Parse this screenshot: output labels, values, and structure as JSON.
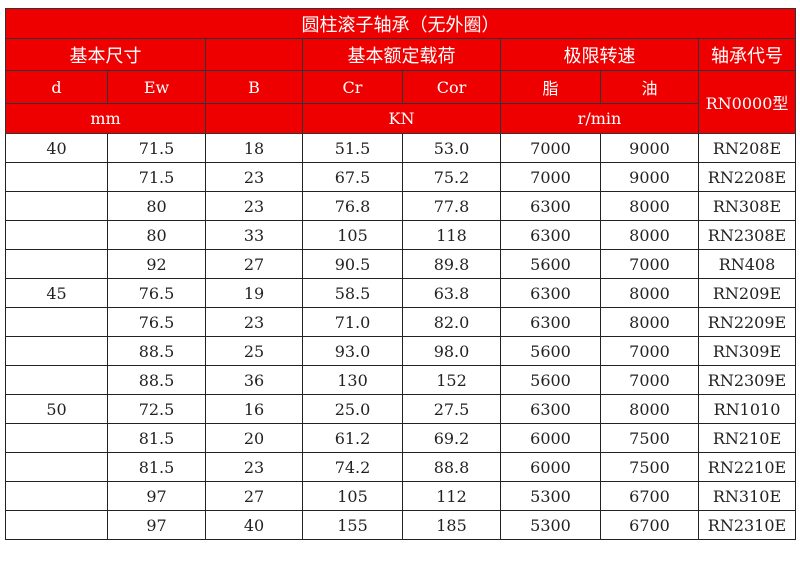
{
  "title": "圆柱滚子轴承（无外圈）",
  "header": {
    "group_dims": "基本尺寸",
    "group_load": "基本额定载荷",
    "group_speed": "极限转速",
    "group_code": "轴承代号",
    "col_d": "d",
    "col_ew": "Ew",
    "col_b": "B",
    "col_cr": "Cr",
    "col_cor": "Cor",
    "col_grease": "脂",
    "col_oil": "油",
    "code_type": "RN0000型",
    "unit_mm": "mm",
    "unit_kn": "KN",
    "unit_rpm": "r/min"
  },
  "header_color": "#ee0000",
  "rows": [
    [
      "40",
      "71.5",
      "18",
      "51.5",
      "53.0",
      "7000",
      "9000",
      "RN208E"
    ],
    [
      "",
      "71.5",
      "23",
      "67.5",
      "75.2",
      "7000",
      "9000",
      "RN2208E"
    ],
    [
      "",
      "80",
      "23",
      "76.8",
      "77.8",
      "6300",
      "8000",
      "RN308E"
    ],
    [
      "",
      "80",
      "33",
      "105",
      "118",
      "6300",
      "8000",
      "RN2308E"
    ],
    [
      "",
      "92",
      "27",
      "90.5",
      "89.8",
      "5600",
      "7000",
      "RN408"
    ],
    [
      "45",
      "76.5",
      "19",
      "58.5",
      "63.8",
      "6300",
      "8000",
      "RN209E"
    ],
    [
      "",
      "76.5",
      "23",
      "71.0",
      "82.0",
      "6300",
      "8000",
      "RN2209E"
    ],
    [
      "",
      "88.5",
      "25",
      "93.0",
      "98.0",
      "5600",
      "7000",
      "RN309E"
    ],
    [
      "",
      "88.5",
      "36",
      "130",
      "152",
      "5600",
      "7000",
      "RN2309E"
    ],
    [
      "50",
      "72.5",
      "16",
      "25.0",
      "27.5",
      "6300",
      "8000",
      "RN1010"
    ],
    [
      "",
      "81.5",
      "20",
      "61.2",
      "69.2",
      "6000",
      "7500",
      "RN210E"
    ],
    [
      "",
      "81.5",
      "23",
      "74.2",
      "88.8",
      "6000",
      "7500",
      "RN2210E"
    ],
    [
      "",
      "97",
      "27",
      "105",
      "112",
      "5300",
      "6700",
      "RN310E"
    ],
    [
      "",
      "97",
      "40",
      "155",
      "185",
      "5300",
      "6700",
      "RN2310E"
    ]
  ]
}
